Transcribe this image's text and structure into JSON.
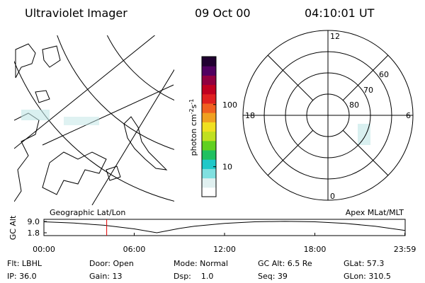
{
  "header": {
    "title": "Ultraviolet Imager",
    "date": "09 Oct 00",
    "time": "04:10:01 UT"
  },
  "colorbar": {
    "label_parts": [
      "photon cm",
      "-2",
      "s",
      "-1"
    ],
    "scale": "log",
    "clim": [
      3.3,
      590
    ],
    "ticks": [
      10,
      100
    ],
    "colors": [
      "#ffffff",
      "#e0f0f0",
      "#80e0e0",
      "#20c8c8",
      "#20c060",
      "#60d020",
      "#c0e020",
      "#f0e020",
      "#f0a020",
      "#f06020",
      "#e02020",
      "#c00020",
      "#900040",
      "#500060",
      "#200030"
    ]
  },
  "polar": {
    "mlt_labels": [
      "12",
      "18",
      "6",
      "0"
    ],
    "lat_labels": [
      "60",
      "70",
      "80"
    ]
  },
  "altitude_plot": {
    "left_label": "Geographic Lat/Lon",
    "right_label": "Apex MLat/MLT",
    "ylabel": "GC Alt",
    "x": [
      0,
      2,
      4,
      6,
      7.5,
      9,
      10,
      12,
      14,
      16,
      18,
      20,
      22,
      24
    ],
    "values": [
      8.8,
      8.0,
      6.6,
      4.3,
      1.8,
      4.6,
      6.0,
      7.8,
      8.8,
      9.1,
      8.8,
      7.8,
      6.0,
      3.3
    ],
    "xlim": [
      0,
      24
    ],
    "ylim": [
      0,
      10.4
    ],
    "xticks": [
      {
        "value": 0,
        "label": "00:00"
      },
      {
        "value": 6,
        "label": "06:00"
      },
      {
        "value": 12,
        "label": "12:00"
      },
      {
        "value": 18,
        "label": "18:00"
      },
      {
        "value": 23.98,
        "label": "23:59"
      }
    ],
    "yticks": [
      {
        "value": 9.0,
        "label": "9.0"
      },
      {
        "value": 1.8,
        "label": "1.8"
      }
    ],
    "current_time": 4.17,
    "line_color": "#000000",
    "marker_color": "#e00000"
  },
  "info": {
    "rows": [
      [
        "Flt: LBHL",
        "Door: Open",
        "Mode: Normal",
        "GC Alt: 6.5 Re",
        "GLat: 57.3"
      ],
      [
        "IP: 36.0",
        "Gain: 13",
        "Dsp:    1.0",
        "Seq: 39",
        "GLon: 310.5"
      ]
    ]
  }
}
